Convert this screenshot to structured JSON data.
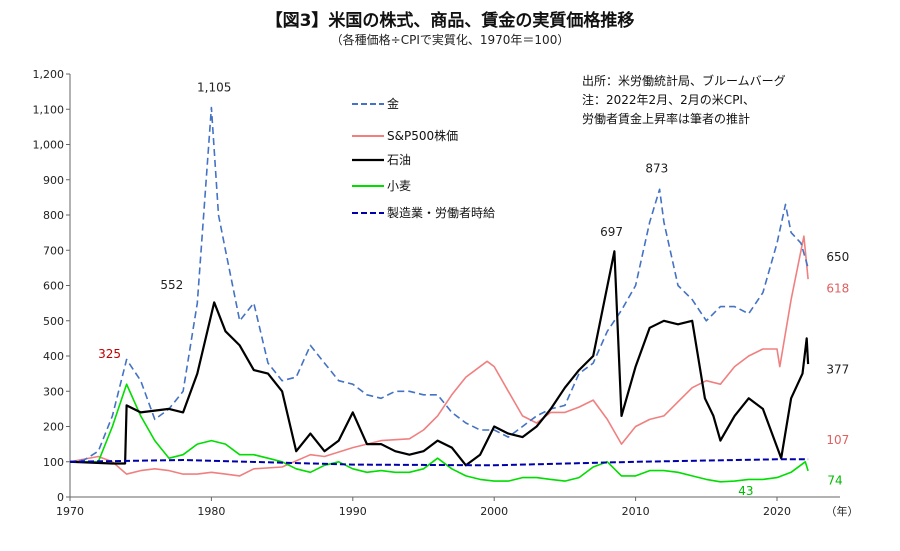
{
  "chart_data": {
    "type": "line",
    "title": "【図3】米国の株式、商品、賃金の実質価格推移",
    "subtitle": "（各種価格÷CPIで実質化、1970年＝100）",
    "source_lines": [
      "出所：米労働統計局、ブルームバーグ",
      "注：2022年2月、2月の米CPI、",
      "労働者賃金上昇率は筆者の推計"
    ],
    "xlabel": "（年）",
    "ylabel": "",
    "xlim": [
      1970,
      2023
    ],
    "ylim": [
      0,
      1200
    ],
    "x_ticks": [
      1970,
      1980,
      1990,
      2000,
      2010,
      2020
    ],
    "y_ticks": [
      0,
      100,
      200,
      300,
      400,
      500,
      600,
      700,
      800,
      900,
      1000,
      1100,
      1200
    ],
    "y_tick_labels": [
      "0",
      "100",
      "200",
      "300",
      "400",
      "500",
      "600",
      "700",
      "800",
      "900",
      "1,000",
      "1,100",
      "1,200"
    ],
    "legend_position": "top-center",
    "series": [
      {
        "name": "金",
        "color": "#4472c4",
        "style": "dashed",
        "x": [
          1970,
          1971,
          1972,
          1973,
          1974,
          1975,
          1976,
          1977,
          1978,
          1979,
          1980,
          1980.5,
          1981,
          1982,
          1983,
          1984,
          1985,
          1986,
          1987,
          1988,
          1989,
          1990,
          1991,
          1992,
          1993,
          1994,
          1995,
          1996,
          1997,
          1998,
          1999,
          2000,
          2001,
          2002,
          2003,
          2004,
          2005,
          2006,
          2007,
          2008,
          2009,
          2010,
          2011,
          2011.7,
          2012,
          2013,
          2014,
          2015,
          2016,
          2017,
          2018,
          2019,
          2020,
          2020.6,
          2021,
          2021.7,
          2022.2
        ],
        "y": [
          100,
          105,
          130,
          230,
          390,
          330,
          220,
          250,
          300,
          550,
          1105,
          800,
          700,
          500,
          550,
          380,
          330,
          340,
          430,
          380,
          330,
          320,
          290,
          280,
          300,
          300,
          290,
          290,
          240,
          210,
          190,
          190,
          170,
          200,
          230,
          250,
          260,
          350,
          380,
          470,
          530,
          600,
          780,
          873,
          780,
          600,
          560,
          500,
          540,
          540,
          520,
          580,
          720,
          830,
          750,
          720,
          650
        ]
      },
      {
        "name": "S&P500株価",
        "color": "#f08080",
        "style": "solid",
        "x": [
          1970,
          1972,
          1973,
          1974,
          1975,
          1976,
          1977,
          1978,
          1979,
          1980,
          1981,
          1982,
          1983,
          1985,
          1987,
          1988,
          1990,
          1992,
          1994,
          1995,
          1996,
          1997,
          1998,
          1999.5,
          2000,
          2001,
          2002,
          2003,
          2004,
          2005,
          2006,
          2007,
          2008,
          2009,
          2010,
          2011,
          2012,
          2013,
          2014,
          2015,
          2016,
          2017,
          2018,
          2019,
          2020,
          2020.2,
          2021,
          2021.9,
          2022.2
        ],
        "y": [
          100,
          115,
          100,
          65,
          75,
          80,
          75,
          65,
          65,
          70,
          65,
          60,
          80,
          85,
          120,
          115,
          140,
          160,
          165,
          190,
          230,
          290,
          340,
          385,
          370,
          300,
          230,
          210,
          240,
          240,
          255,
          275,
          220,
          150,
          200,
          220,
          230,
          270,
          310,
          330,
          320,
          370,
          400,
          420,
          420,
          370,
          560,
          740,
          618
        ]
      },
      {
        "name": "石油",
        "color": "#000000",
        "style": "solid",
        "x": [
          1970,
          1973,
          1973.9,
          1974,
          1975,
          1977,
          1978,
          1979,
          1980.2,
          1981,
          1982,
          1983,
          1984,
          1985,
          1986,
          1987,
          1988,
          1989,
          1990,
          1991,
          1992,
          1993,
          1994,
          1995,
          1996,
          1997,
          1998,
          1999,
          2000,
          2001,
          2002,
          2003,
          2004,
          2005,
          2006,
          2007,
          2008.5,
          2009,
          2010,
          2011,
          2012,
          2013,
          2014,
          2014.9,
          2015.5,
          2016,
          2017,
          2018,
          2019,
          2020.3,
          2021,
          2021.8,
          2022.1,
          2022.2
        ],
        "y": [
          100,
          95,
          95,
          260,
          240,
          250,
          240,
          350,
          552,
          470,
          430,
          360,
          350,
          300,
          130,
          180,
          130,
          160,
          240,
          150,
          150,
          130,
          120,
          130,
          160,
          140,
          90,
          120,
          200,
          180,
          170,
          200,
          250,
          310,
          360,
          400,
          697,
          230,
          370,
          480,
          500,
          490,
          500,
          280,
          230,
          160,
          230,
          280,
          250,
          110,
          280,
          350,
          450,
          377
        ]
      },
      {
        "name": "小麦",
        "color": "#00dd00",
        "style": "solid",
        "x": [
          1970,
          1972,
          1973,
          1974,
          1975,
          1976,
          1977,
          1978,
          1979,
          1980,
          1981,
          1982,
          1983,
          1984,
          1985,
          1986,
          1987,
          1988,
          1989,
          1990,
          1991,
          1992,
          1993,
          1994,
          1995,
          1996,
          1997,
          1998,
          1999,
          2000,
          2001,
          2002,
          2003,
          2004,
          2005,
          2006,
          2007,
          2008,
          2009,
          2010,
          2011,
          2012,
          2013,
          2014,
          2015,
          2016,
          2017,
          2018,
          2019,
          2020,
          2021,
          2022,
          2022.2
        ],
        "y": [
          100,
          100,
          200,
          320,
          230,
          160,
          110,
          120,
          150,
          160,
          150,
          120,
          120,
          110,
          100,
          80,
          70,
          90,
          100,
          80,
          70,
          75,
          70,
          70,
          80,
          110,
          80,
          60,
          50,
          45,
          45,
          55,
          55,
          50,
          45,
          55,
          85,
          100,
          60,
          60,
          75,
          75,
          70,
          60,
          50,
          43,
          45,
          50,
          50,
          55,
          70,
          100,
          74
        ]
      },
      {
        "name": "製造業・労働者時給",
        "color": "#0000aa",
        "style": "dashed",
        "x": [
          1970,
          1978,
          1990,
          2000,
          2010,
          2020,
          2022.2
        ],
        "y": [
          100,
          105,
          92,
          90,
          100,
          107,
          107
        ]
      }
    ],
    "annotations": [
      {
        "text": "1,105",
        "x": 1980.2,
        "y": 1150,
        "color": "#222222"
      },
      {
        "text": "552",
        "x": 1977.2,
        "y": 590,
        "color": "#222222"
      },
      {
        "text": "325",
        "x": 1972.8,
        "y": 395,
        "color": "#c00000"
      },
      {
        "text": "697",
        "x": 2008.3,
        "y": 740,
        "color": "#222222"
      },
      {
        "text": "873",
        "x": 2011.5,
        "y": 920,
        "color": "#222222"
      },
      {
        "text": "650",
        "x": 2024.3,
        "y": 670,
        "color": "#222222"
      },
      {
        "text": "618",
        "x": 2024.3,
        "y": 580,
        "color": "#e06060"
      },
      {
        "text": "377",
        "x": 2024.3,
        "y": 350,
        "color": "#222222"
      },
      {
        "text": "107",
        "x": 2024.3,
        "y": 150,
        "color": "#e06060"
      },
      {
        "text": "74",
        "x": 2024.1,
        "y": 35,
        "color": "#00bb00"
      },
      {
        "text": "43",
        "x": 2017.8,
        "y": 5,
        "color": "#00bb00"
      }
    ]
  }
}
